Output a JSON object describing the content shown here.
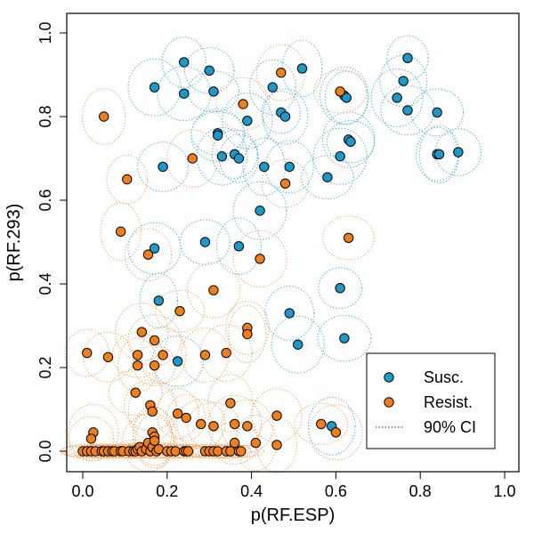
{
  "colors": {
    "susc": "#1a9ac9",
    "resist": "#f07f1a",
    "susc_ci": "#35a9d6",
    "resist_ci": "#f59c4a",
    "point_stroke": "#000000"
  },
  "chart_data": {
    "type": "scatter",
    "title": "",
    "xlabel": "p(RF.ESP)",
    "ylabel": "p(RF.293)",
    "xlim": [
      0,
      1
    ],
    "ylim": [
      0,
      1
    ],
    "xticks": [
      "0.0",
      "0.2",
      "0.4",
      "0.6",
      "0.8",
      "1.0"
    ],
    "yticks": [
      "0.0",
      "0.2",
      "0.4",
      "0.6",
      "0.8",
      "1.0"
    ],
    "legend": {
      "position": "bottom-right",
      "entries": [
        {
          "label": "Susc.",
          "kind": "point",
          "series": "susc"
        },
        {
          "label": "Resist.",
          "kind": "point",
          "series": "resist"
        },
        {
          "label": "90% CI",
          "kind": "dotted-line",
          "series": "ci"
        }
      ]
    },
    "series": [
      {
        "name": "Susc.",
        "points": [
          [
            0.24,
            0.93
          ],
          [
            0.3,
            0.91
          ],
          [
            0.17,
            0.87
          ],
          [
            0.24,
            0.855
          ],
          [
            0.31,
            0.86
          ],
          [
            0.45,
            0.87
          ],
          [
            0.52,
            0.915
          ],
          [
            0.77,
            0.94
          ],
          [
            0.76,
            0.885
          ],
          [
            0.745,
            0.845
          ],
          [
            0.77,
            0.815
          ],
          [
            0.84,
            0.81
          ],
          [
            0.62,
            0.85
          ],
          [
            0.625,
            0.845
          ],
          [
            0.47,
            0.81
          ],
          [
            0.48,
            0.8
          ],
          [
            0.39,
            0.79
          ],
          [
            0.32,
            0.76
          ],
          [
            0.32,
            0.755
          ],
          [
            0.33,
            0.705
          ],
          [
            0.36,
            0.71
          ],
          [
            0.37,
            0.7
          ],
          [
            0.43,
            0.68
          ],
          [
            0.49,
            0.68
          ],
          [
            0.58,
            0.655
          ],
          [
            0.61,
            0.705
          ],
          [
            0.63,
            0.745
          ],
          [
            0.635,
            0.74
          ],
          [
            0.84,
            0.71
          ],
          [
            0.845,
            0.71
          ],
          [
            0.89,
            0.715
          ],
          [
            0.19,
            0.68
          ],
          [
            0.42,
            0.575
          ],
          [
            0.17,
            0.485
          ],
          [
            0.29,
            0.5
          ],
          [
            0.37,
            0.49
          ],
          [
            0.18,
            0.36
          ],
          [
            0.61,
            0.39
          ],
          [
            0.49,
            0.33
          ],
          [
            0.51,
            0.255
          ],
          [
            0.62,
            0.27
          ],
          [
            0.225,
            0.215
          ],
          [
            0.59,
            0.06
          ]
        ]
      },
      {
        "name": "Resist.",
        "points": [
          [
            0.05,
            0.8
          ],
          [
            0.47,
            0.905
          ],
          [
            0.61,
            0.86
          ],
          [
            0.38,
            0.83
          ],
          [
            0.26,
            0.7
          ],
          [
            0.48,
            0.64
          ],
          [
            0.105,
            0.65
          ],
          [
            0.09,
            0.525
          ],
          [
            0.155,
            0.47
          ],
          [
            0.63,
            0.51
          ],
          [
            0.42,
            0.46
          ],
          [
            0.31,
            0.385
          ],
          [
            0.23,
            0.335
          ],
          [
            0.39,
            0.295
          ],
          [
            0.39,
            0.28
          ],
          [
            0.01,
            0.235
          ],
          [
            0.06,
            0.225
          ],
          [
            0.14,
            0.285
          ],
          [
            0.17,
            0.265
          ],
          [
            0.13,
            0.23
          ],
          [
            0.19,
            0.23
          ],
          [
            0.13,
            0.205
          ],
          [
            0.17,
            0.205
          ],
          [
            0.29,
            0.23
          ],
          [
            0.34,
            0.235
          ],
          [
            0.125,
            0.14
          ],
          [
            0.16,
            0.11
          ],
          [
            0.165,
            0.095
          ],
          [
            0.225,
            0.09
          ],
          [
            0.245,
            0.08
          ],
          [
            0.35,
            0.115
          ],
          [
            0.46,
            0.085
          ],
          [
            0.565,
            0.065
          ],
          [
            0.6,
            0.045
          ],
          [
            0.025,
            0.045
          ],
          [
            0.02,
            0.03
          ],
          [
            0.165,
            0.045
          ],
          [
            0.17,
            0.035
          ],
          [
            0.28,
            0.065
          ],
          [
            0.31,
            0.06
          ],
          [
            0.36,
            0.065
          ],
          [
            0.39,
            0.06
          ],
          [
            0.36,
            0.02
          ],
          [
            0.41,
            0.02
          ],
          [
            0.46,
            0.015
          ],
          [
            0.0,
            0.0
          ],
          [
            0.01,
            0.0
          ],
          [
            0.02,
            0.0
          ],
          [
            0.03,
            0.0
          ],
          [
            0.045,
            0.0
          ],
          [
            0.05,
            0.0
          ],
          [
            0.06,
            0.0
          ],
          [
            0.07,
            0.0
          ],
          [
            0.075,
            0.0
          ],
          [
            0.09,
            0.0
          ],
          [
            0.095,
            0.0
          ],
          [
            0.11,
            0.0
          ],
          [
            0.12,
            0.0
          ],
          [
            0.125,
            0.0
          ],
          [
            0.13,
            0.005
          ],
          [
            0.135,
            0.01
          ],
          [
            0.14,
            0.0
          ],
          [
            0.15,
            0.005
          ],
          [
            0.155,
            0.02
          ],
          [
            0.16,
            0.0
          ],
          [
            0.165,
            0.01
          ],
          [
            0.17,
            0.025
          ],
          [
            0.175,
            0.0
          ],
          [
            0.18,
            0.005
          ],
          [
            0.2,
            0.0
          ],
          [
            0.21,
            0.0
          ],
          [
            0.22,
            0.0
          ],
          [
            0.24,
            0.0
          ],
          [
            0.245,
            0.0
          ],
          [
            0.25,
            0.0
          ],
          [
            0.29,
            0.0
          ],
          [
            0.3,
            0.0
          ],
          [
            0.31,
            0.0
          ],
          [
            0.32,
            0.0
          ],
          [
            0.34,
            0.0
          ],
          [
            0.35,
            0.0
          ],
          [
            0.37,
            0.0
          ],
          [
            0.375,
            0.0
          ]
        ]
      }
    ],
    "ci_half_widths": {
      "note": "90% CI ellipses drawn around each point (approx. half-widths in data units)",
      "x": 0.055,
      "y": 0.06
    }
  }
}
